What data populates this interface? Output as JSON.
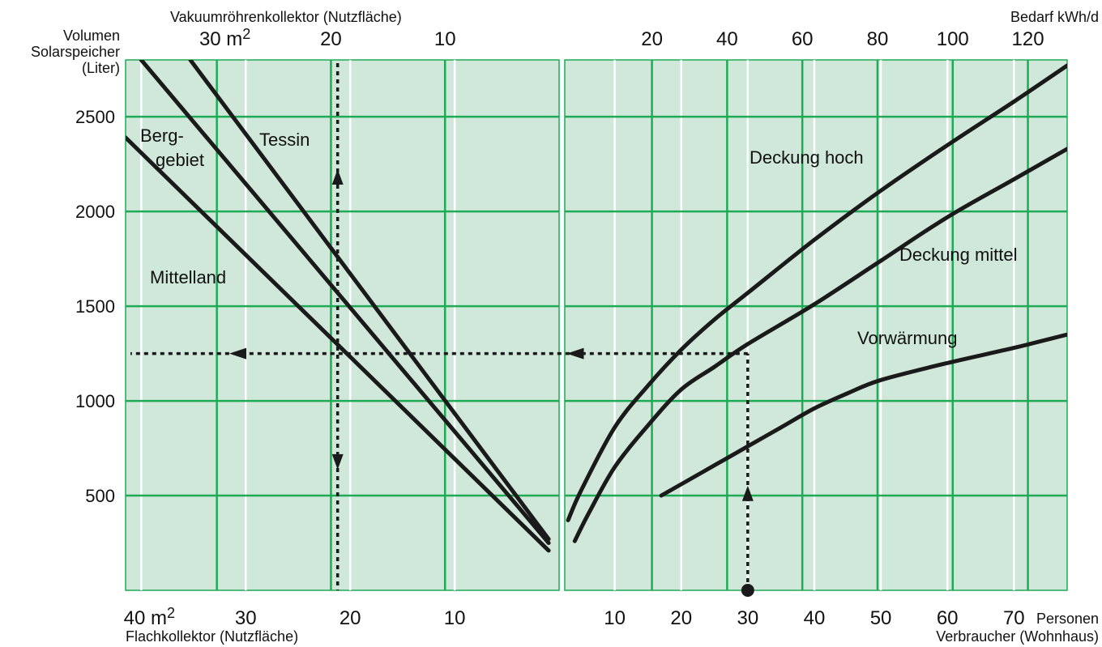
{
  "chart_data": {
    "type": "line",
    "colors": {
      "panel_fill": "#cfe8da",
      "major_grid": "#1faa55",
      "minor_grid": "#ffffff",
      "curve": "#1a1a1a"
    },
    "y_axis": {
      "label_line1": "Volumen",
      "label_line2": "Solarspeicher",
      "label_line3": "(Liter)",
      "ticks": [
        500,
        1000,
        1500,
        2000,
        2500
      ],
      "range": [
        0,
        2800
      ]
    },
    "left_panel": {
      "top_axis": {
        "title": "Vakuumröhrenkollektor (Nutzfläche)",
        "tick_labels": [
          "30 m",
          "20",
          "10"
        ],
        "tick_values": [
          30,
          20,
          10
        ],
        "unit_superscript": "2",
        "range_at_left": 38,
        "range_at_right": 0
      },
      "bottom_axis": {
        "title": "Flachkollektor (Nutzfläche)",
        "tick_labels": [
          "40 m",
          "30",
          "20",
          "10"
        ],
        "tick_values": [
          40,
          30,
          20,
          10
        ],
        "unit_superscript": "2",
        "range_at_left": 41.5,
        "range_at_right": 0
      },
      "series": [
        {
          "name": "Tessin",
          "label": "Tessin",
          "x_flach": [
            35.3,
            1.0
          ],
          "y": [
            2800,
            270
          ]
        },
        {
          "name": "Berggebiet",
          "label_line1": "Berg-",
          "label_line2": "gebiet",
          "x_flach": [
            40.0,
            1.0
          ],
          "y": [
            2800,
            250
          ]
        },
        {
          "name": "Mittelland",
          "label": "Mittelland",
          "x_flach": [
            41.5,
            1.0
          ],
          "y": [
            2390,
            210
          ]
        }
      ],
      "example": {
        "x_flach": 21.2,
        "y": 1250
      }
    },
    "right_panel": {
      "top_axis": {
        "title": "Bedarf kWh/d",
        "tick_labels": [
          "20",
          "40",
          "60",
          "80",
          "100",
          "120"
        ],
        "tick_values": [
          20,
          40,
          60,
          80,
          100,
          120
        ]
      },
      "bottom_axis": {
        "title_line1": "Personen",
        "title_line2": "Verbraucher (Wohnhaus)",
        "tick_labels": [
          "10",
          "20",
          "30",
          "40",
          "50",
          "60",
          "70"
        ],
        "tick_values": [
          10,
          20,
          30,
          40,
          50,
          60,
          70
        ],
        "range": [
          2.5,
          78
        ]
      },
      "series": [
        {
          "name": "Deckung hoch",
          "label": "Deckung hoch",
          "x": [
            3,
            5,
            10,
            15,
            20,
            25,
            30,
            40,
            50,
            60,
            70,
            78
          ],
          "y": [
            370,
            530,
            860,
            1080,
            1270,
            1430,
            1570,
            1850,
            2110,
            2350,
            2580,
            2770
          ]
        },
        {
          "name": "Deckung mittel",
          "label": "Deckung mittel",
          "x": [
            4,
            6,
            10,
            15,
            20,
            25,
            30,
            40,
            50,
            60,
            70,
            78
          ],
          "y": [
            260,
            400,
            650,
            870,
            1060,
            1180,
            1300,
            1510,
            1740,
            1970,
            2170,
            2330
          ]
        },
        {
          "name": "Vorwärmung",
          "label": "Vorwärmung",
          "x": [
            17,
            20,
            25,
            30,
            35,
            40,
            45,
            50,
            60,
            70,
            78
          ],
          "y": [
            500,
            560,
            660,
            760,
            860,
            960,
            1040,
            1110,
            1200,
            1280,
            1350
          ]
        }
      ],
      "example": {
        "x": 30,
        "y": 1250
      }
    }
  }
}
